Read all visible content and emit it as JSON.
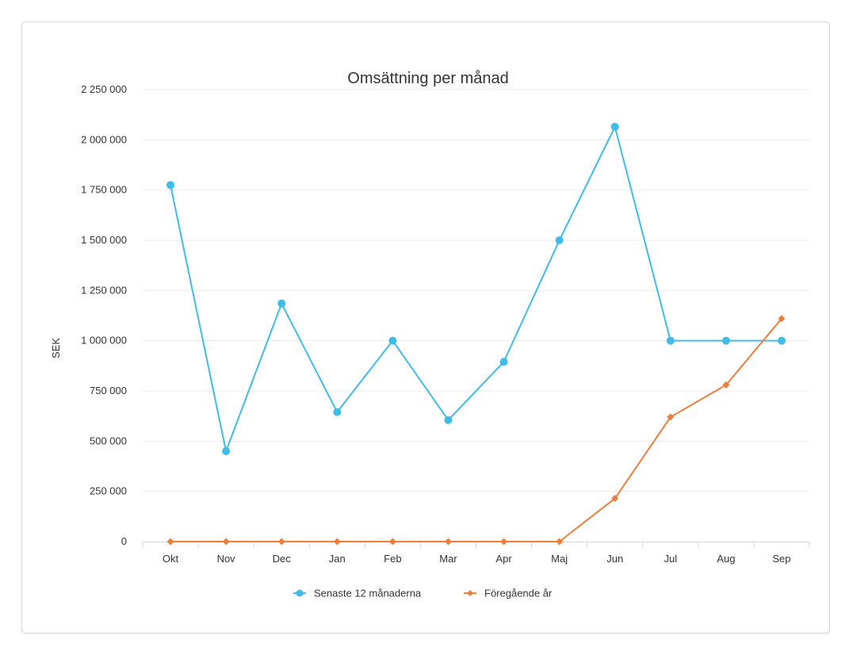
{
  "chart_data": {
    "type": "line",
    "title": "Omsättning per månad",
    "xlabel": "",
    "ylabel": "SEK",
    "categories": [
      "Okt",
      "Nov",
      "Dec",
      "Jan",
      "Feb",
      "Mar",
      "Apr",
      "Maj",
      "Jun",
      "Jul",
      "Aug",
      "Sep"
    ],
    "ylim": [
      0,
      2250000
    ],
    "yticks": [
      0,
      250000,
      500000,
      750000,
      1000000,
      1250000,
      1500000,
      1750000,
      2000000,
      2250000
    ],
    "ytick_labels": [
      "0",
      "250 000",
      "500 000",
      "750 000",
      "1 000 000",
      "1 250 000",
      "1 500 000",
      "1 750 000",
      "2 000 000",
      "2 250 000"
    ],
    "grid": true,
    "legend_position": "bottom",
    "series": [
      {
        "name": "Senaste 12 månaderna",
        "color": "#3dbde8",
        "marker": "circle",
        "values": [
          1775000,
          450000,
          1185000,
          645000,
          1000000,
          605000,
          895000,
          1500000,
          2065000,
          1000000,
          1000000,
          1000000
        ]
      },
      {
        "name": "Föregående år",
        "color": "#f07e3a",
        "marker": "diamond",
        "values": [
          0,
          0,
          0,
          0,
          0,
          0,
          0,
          0,
          215000,
          620000,
          780000,
          1110000
        ]
      }
    ]
  }
}
